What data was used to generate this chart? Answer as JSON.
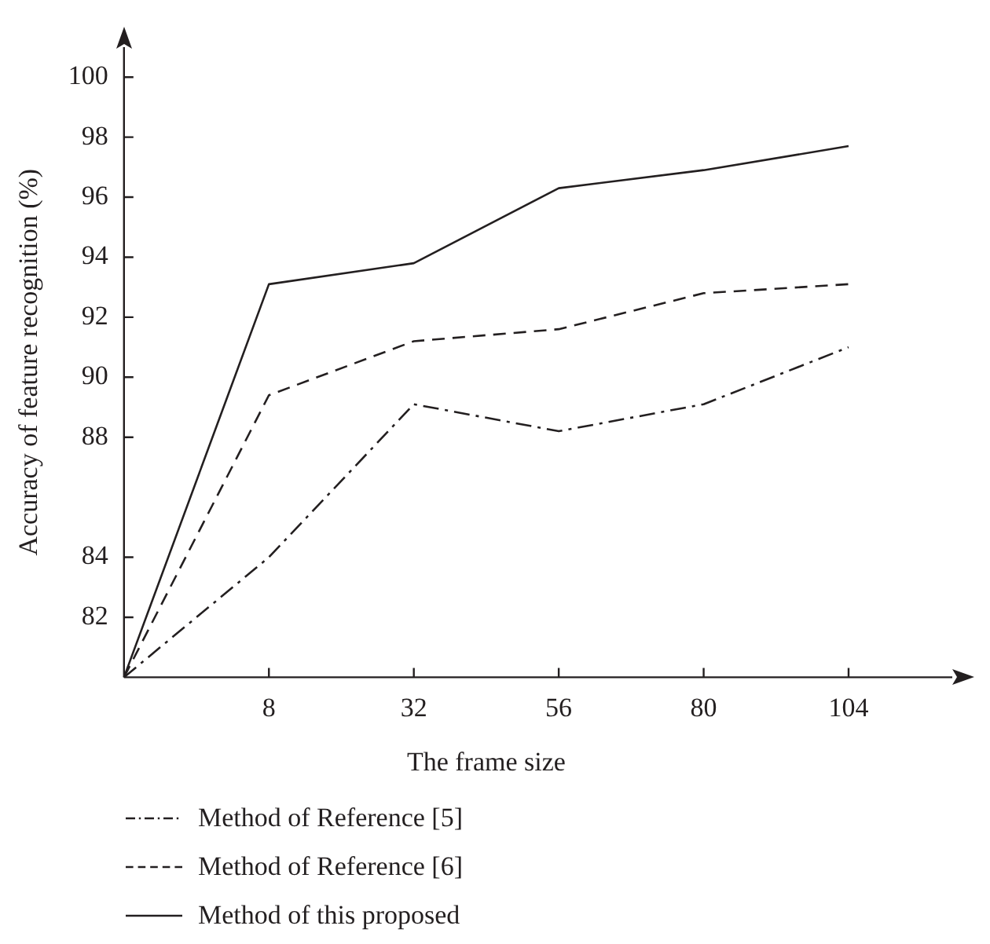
{
  "chart_data": {
    "type": "line",
    "xlabel": "The frame size",
    "ylabel": "Accuracy of feature recognition (%)",
    "categories": [
      null,
      "8",
      "32",
      "56",
      "80",
      "104"
    ],
    "series": [
      {
        "name": "Method of Reference [5]",
        "color": "#231f20",
        "line_style": "dashdot",
        "values": [
          80,
          84.0,
          89.1,
          88.2,
          89.1,
          91.0
        ]
      },
      {
        "name": "Method of Reference [6]",
        "color": "#231f20",
        "line_style": "dashed",
        "values": [
          80,
          89.4,
          91.2,
          91.6,
          92.8,
          93.1
        ]
      },
      {
        "name": "Method of this proposed",
        "color": "#231f20",
        "line_style": "solid",
        "values": [
          80,
          93.1,
          93.8,
          96.3,
          96.9,
          97.7
        ]
      }
    ],
    "ylim": [
      80,
      101
    ],
    "yticks": [
      82,
      84,
      88,
      90,
      92,
      94,
      96,
      98,
      100
    ],
    "grid": false,
    "legend": "bottom",
    "marker": "none"
  }
}
